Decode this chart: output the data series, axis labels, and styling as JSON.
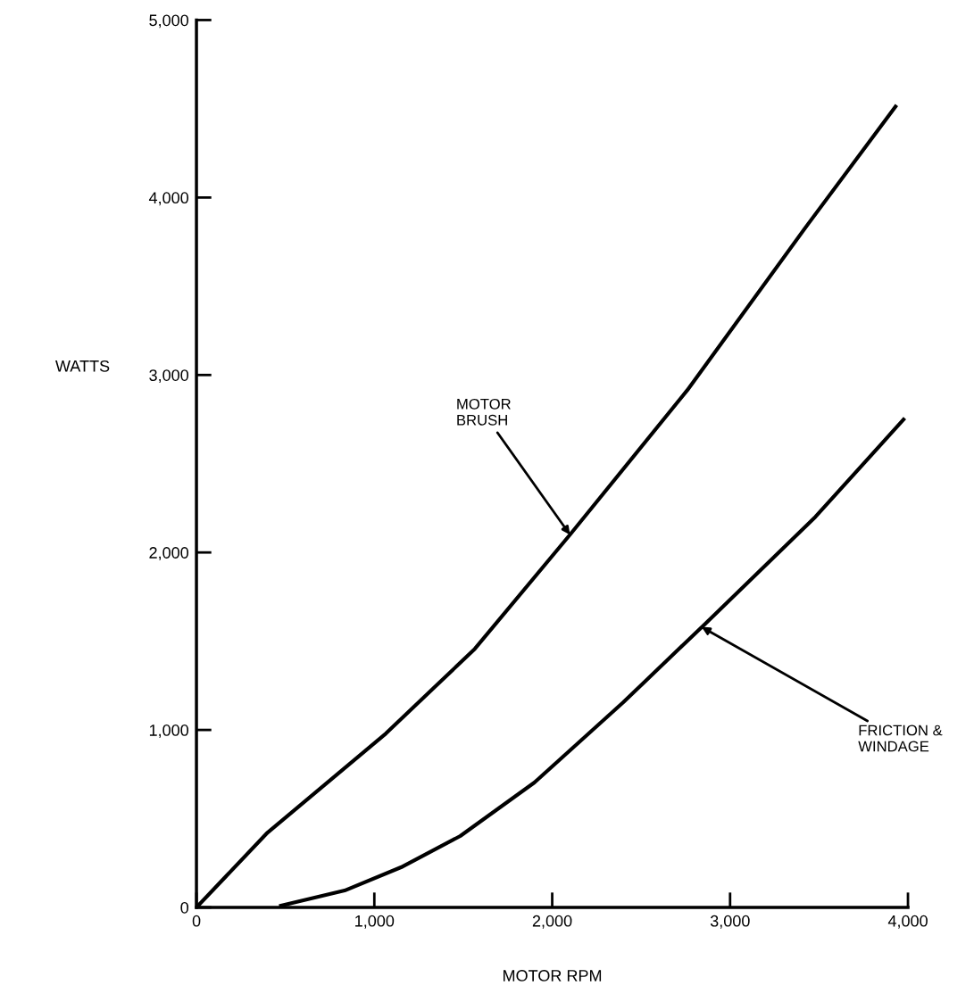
{
  "chart_data": {
    "type": "line",
    "xlabel": "MOTOR RPM",
    "ylabel": "WATTS",
    "xlim": [
      0,
      4000
    ],
    "ylim": [
      0,
      5000
    ],
    "xticks": [
      0,
      {
        "value": 1000,
        "label": "1,000"
      },
      {
        "value": 2000,
        "label": "2,000"
      },
      {
        "value": 3000,
        "label": "3,000"
      },
      {
        "value": 4000,
        "label": "4,000"
      }
    ],
    "yticks": [
      0,
      {
        "value": 1000,
        "label": "1,000"
      },
      {
        "value": 2000,
        "label": "2,000"
      },
      {
        "value": 3000,
        "label": "3,000"
      },
      {
        "value": 4000,
        "label": "4,000"
      },
      {
        "value": 5000,
        "label": "5,000"
      }
    ],
    "grid": false,
    "legend": false,
    "marker": "none",
    "line_style": "solid",
    "series": [
      {
        "color": "#000000",
        "x": [
          0,
          400,
          1065,
          1565,
          2100,
          2760,
          3430,
          3930
        ],
        "values": [
          0,
          422,
          980,
          1457,
          2100,
          2915,
          3839,
          4513
        ]
      },
      {
        "color": "#000000",
        "x": [
          475,
          833,
          1150,
          1483,
          1900,
          2400,
          2865,
          3480,
          3975
        ],
        "values": [
          10,
          95,
          226,
          402,
          704,
          1156,
          1603,
          2201,
          2749
        ]
      }
    ],
    "annotations": [
      {
        "text": "MOTOR\nBRUSH",
        "x": 2100,
        "y": 2100
      },
      {
        "text": "FRICTION &\nWINDAGE",
        "x": 2840,
        "y": 1580
      }
    ]
  }
}
